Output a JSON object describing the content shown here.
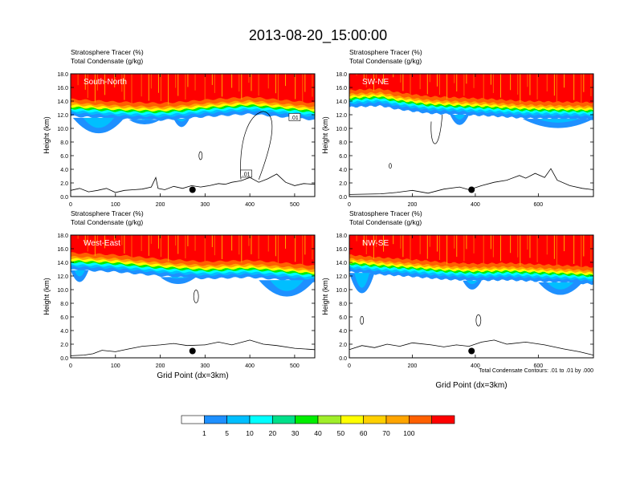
{
  "title": "2013-08-20_15:00:00",
  "footer_note": "Total Condensate Contours: .01 to .01 by .000",
  "chart_data": [
    {
      "type": "heatmap",
      "panel": "South-North",
      "header_lines": [
        "Stratosphere Tracer   (%)",
        "Total Condensate   (g/kg)"
      ],
      "ylabel": "Height (km)",
      "xlabel": "",
      "xlim": [
        0,
        545
      ],
      "ylim": [
        0,
        18
      ],
      "xticks": [
        0,
        100,
        200,
        300,
        400,
        500
      ],
      "xtick_labels": [
        "0",
        "100",
        "200",
        "300",
        "400",
        "500"
      ],
      "yticks": [
        0,
        2,
        4,
        6,
        8,
        10,
        12,
        14,
        16,
        18
      ],
      "ytick_labels": [
        "0.0",
        "2.0",
        "4.0",
        "6.0",
        "8.0",
        "10.0",
        "12.0",
        "14.0",
        "16.0",
        "18.0"
      ],
      "contour_labels": [
        {
          "text": ".01",
          "x": 392,
          "y": 3.3
        },
        {
          "text": ".01",
          "x": 500,
          "y": 11.6
        }
      ],
      "marker": {
        "x": 272,
        "y": 1.0
      },
      "terrain": [
        [
          0,
          0.9
        ],
        [
          20,
          1.2
        ],
        [
          40,
          0.7
        ],
        [
          60,
          0.9
        ],
        [
          80,
          1.2
        ],
        [
          100,
          0.6
        ],
        [
          120,
          0.9
        ],
        [
          140,
          1.0
        ],
        [
          160,
          1.1
        ],
        [
          180,
          1.4
        ],
        [
          190,
          2.8
        ],
        [
          195,
          1.2
        ],
        [
          210,
          1.0
        ],
        [
          230,
          1.5
        ],
        [
          250,
          1.2
        ],
        [
          270,
          1.6
        ],
        [
          290,
          1.4
        ],
        [
          310,
          1.6
        ],
        [
          330,
          1.9
        ],
        [
          345,
          1.8
        ],
        [
          360,
          2.1
        ],
        [
          380,
          2.3
        ],
        [
          400,
          2.8
        ],
        [
          420,
          2.1
        ],
        [
          440,
          2.6
        ],
        [
          460,
          3.3
        ],
        [
          480,
          2.1
        ],
        [
          500,
          1.6
        ],
        [
          520,
          1.9
        ],
        [
          545,
          1.8
        ]
      ],
      "tracer_top": [
        [
          0,
          12.8
        ],
        [
          50,
          12.6
        ],
        [
          100,
          12.4
        ],
        [
          150,
          12.3
        ],
        [
          200,
          12.2
        ],
        [
          250,
          12.4
        ],
        [
          300,
          12.7
        ],
        [
          350,
          12.9
        ],
        [
          400,
          13.1
        ],
        [
          450,
          12.8
        ],
        [
          500,
          12.5
        ],
        [
          545,
          12.2
        ]
      ],
      "tracer_intrusions": [
        {
          "x0": 5,
          "x1": 120,
          "depth": 7.8
        },
        {
          "x0": 130,
          "x1": 200,
          "depth": 10.7
        },
        {
          "x0": 230,
          "x1": 265,
          "depth": 9.8
        }
      ]
    },
    {
      "type": "heatmap",
      "panel": "SW-NE",
      "header_lines": [
        "Stratosphere Tracer   (%)",
        "Total Condensate   (g/kg)"
      ],
      "ylabel": "Height (km)",
      "xlabel": "",
      "xlim": [
        0,
        775
      ],
      "ylim": [
        0,
        18
      ],
      "xticks": [
        0,
        200,
        400,
        600
      ],
      "xtick_labels": [
        "0",
        "200",
        "400",
        "600"
      ],
      "yticks": [
        0,
        2,
        4,
        6,
        8,
        10,
        12,
        14,
        16,
        18
      ],
      "ytick_labels": [
        "0.0",
        "2.0",
        "4.0",
        "6.0",
        "8.0",
        "10.0",
        "12.0",
        "14.0",
        "16.0",
        "18.0"
      ],
      "contour_labels": [],
      "marker": {
        "x": 388,
        "y": 1.0
      },
      "terrain": [
        [
          0,
          0.3
        ],
        [
          100,
          0.4
        ],
        [
          150,
          0.6
        ],
        [
          200,
          0.9
        ],
        [
          250,
          0.5
        ],
        [
          300,
          1.1
        ],
        [
          350,
          1.4
        ],
        [
          380,
          1.0
        ],
        [
          420,
          1.6
        ],
        [
          460,
          2.1
        ],
        [
          500,
          2.4
        ],
        [
          540,
          3.1
        ],
        [
          560,
          2.7
        ],
        [
          590,
          3.4
        ],
        [
          620,
          2.8
        ],
        [
          640,
          4.1
        ],
        [
          660,
          2.4
        ],
        [
          700,
          1.6
        ],
        [
          740,
          1.2
        ],
        [
          775,
          1.0
        ]
      ],
      "tracer_top": [
        [
          0,
          14.1
        ],
        [
          100,
          14.3
        ],
        [
          150,
          13.8
        ],
        [
          250,
          13.2
        ],
        [
          350,
          13.0
        ],
        [
          450,
          12.8
        ],
        [
          550,
          12.5
        ],
        [
          650,
          12.4
        ],
        [
          775,
          12.3
        ]
      ],
      "tracer_intrusions": [
        {
          "x0": 320,
          "x1": 380,
          "depth": 9.8
        },
        {
          "x0": 550,
          "x1": 775,
          "depth": 9.5
        }
      ]
    },
    {
      "type": "heatmap",
      "panel": "West-East",
      "header_lines": [
        "Stratosphere Tracer   (%)",
        "Total Condensate   (g/kg)"
      ],
      "ylabel": "Height (km)",
      "xlabel": "Grid Point (dx=3km)",
      "xlim": [
        0,
        545
      ],
      "ylim": [
        0,
        18
      ],
      "xticks": [
        0,
        100,
        200,
        300,
        400,
        500
      ],
      "xtick_labels": [
        "0",
        "100",
        "200",
        "300",
        "400",
        "500"
      ],
      "yticks": [
        0,
        2,
        4,
        6,
        8,
        10,
        12,
        14,
        16,
        18
      ],
      "ytick_labels": [
        "0.0",
        "2.0",
        "4.0",
        "6.0",
        "8.0",
        "10.0",
        "12.0",
        "14.0",
        "16.0",
        "18.0"
      ],
      "contour_labels": [],
      "marker": {
        "x": 272,
        "y": 1.0
      },
      "terrain": [
        [
          0,
          0.3
        ],
        [
          30,
          0.4
        ],
        [
          50,
          0.6
        ],
        [
          70,
          1.1
        ],
        [
          100,
          0.9
        ],
        [
          130,
          1.3
        ],
        [
          160,
          1.7
        ],
        [
          200,
          1.9
        ],
        [
          230,
          2.1
        ],
        [
          260,
          1.8
        ],
        [
          300,
          1.9
        ],
        [
          330,
          2.3
        ],
        [
          360,
          1.9
        ],
        [
          400,
          2.6
        ],
        [
          430,
          2.0
        ],
        [
          460,
          1.8
        ],
        [
          500,
          1.4
        ],
        [
          545,
          1.2
        ]
      ],
      "tracer_top": [
        [
          0,
          13.9
        ],
        [
          100,
          13.6
        ],
        [
          200,
          13.0
        ],
        [
          300,
          12.6
        ],
        [
          400,
          12.8
        ],
        [
          480,
          12.4
        ],
        [
          545,
          12.0
        ]
      ],
      "tracer_intrusions": [
        {
          "x0": 0,
          "x1": 40,
          "depth": 10.2
        },
        {
          "x0": 200,
          "x1": 280,
          "depth": 10.6
        },
        {
          "x0": 420,
          "x1": 545,
          "depth": 7.4
        }
      ]
    },
    {
      "type": "heatmap",
      "panel": "NW-SE",
      "header_lines": [
        "Stratosphere Tracer   (%)",
        "Total Condensate   (g/kg)"
      ],
      "ylabel": "Height (km)",
      "xlabel": "Grid Point (dx=3km)",
      "xlim": [
        0,
        775
      ],
      "ylim": [
        0,
        18
      ],
      "xticks": [
        0,
        200,
        400,
        600
      ],
      "xtick_labels": [
        "0",
        "200",
        "400",
        "600"
      ],
      "yticks": [
        0,
        2,
        4,
        6,
        8,
        10,
        12,
        14,
        16,
        18
      ],
      "ytick_labels": [
        "0.0",
        "2.0",
        "4.0",
        "6.0",
        "8.0",
        "10.0",
        "12.0",
        "14.0",
        "16.0",
        "18.0"
      ],
      "contour_labels": [],
      "marker": {
        "x": 388,
        "y": 1.0
      },
      "terrain": [
        [
          0,
          1.2
        ],
        [
          40,
          1.8
        ],
        [
          80,
          1.5
        ],
        [
          120,
          2.0
        ],
        [
          160,
          1.7
        ],
        [
          200,
          2.2
        ],
        [
          260,
          1.9
        ],
        [
          300,
          1.6
        ],
        [
          340,
          1.9
        ],
        [
          380,
          1.7
        ],
        [
          420,
          2.3
        ],
        [
          460,
          2.6
        ],
        [
          500,
          2.0
        ],
        [
          560,
          2.3
        ],
        [
          620,
          1.9
        ],
        [
          680,
          1.3
        ],
        [
          730,
          0.9
        ],
        [
          775,
          0.4
        ]
      ],
      "tracer_top": [
        [
          0,
          13.6
        ],
        [
          100,
          13.2
        ],
        [
          200,
          12.9
        ],
        [
          300,
          12.5
        ],
        [
          400,
          12.3
        ],
        [
          500,
          12.4
        ],
        [
          600,
          12.2
        ],
        [
          700,
          12.0
        ],
        [
          775,
          11.8
        ]
      ],
      "tracer_intrusions": [
        {
          "x0": 0,
          "x1": 80,
          "depth": 7.3
        },
        {
          "x0": 360,
          "x1": 420,
          "depth": 9.5
        },
        {
          "x0": 600,
          "x1": 740,
          "depth": 8.2
        }
      ]
    }
  ],
  "colorbar": {
    "labels": [
      "1",
      "5",
      "10",
      "20",
      "30",
      "40",
      "50",
      "60",
      "70",
      "100"
    ],
    "colors": [
      "#ffffff",
      "#1e90ff",
      "#00bfff",
      "#00ffff",
      "#00e08a",
      "#00ee00",
      "#a0ee2a",
      "#ffff00",
      "#ffd000",
      "#ffa500",
      "#ff6000",
      "#ff0000"
    ]
  }
}
